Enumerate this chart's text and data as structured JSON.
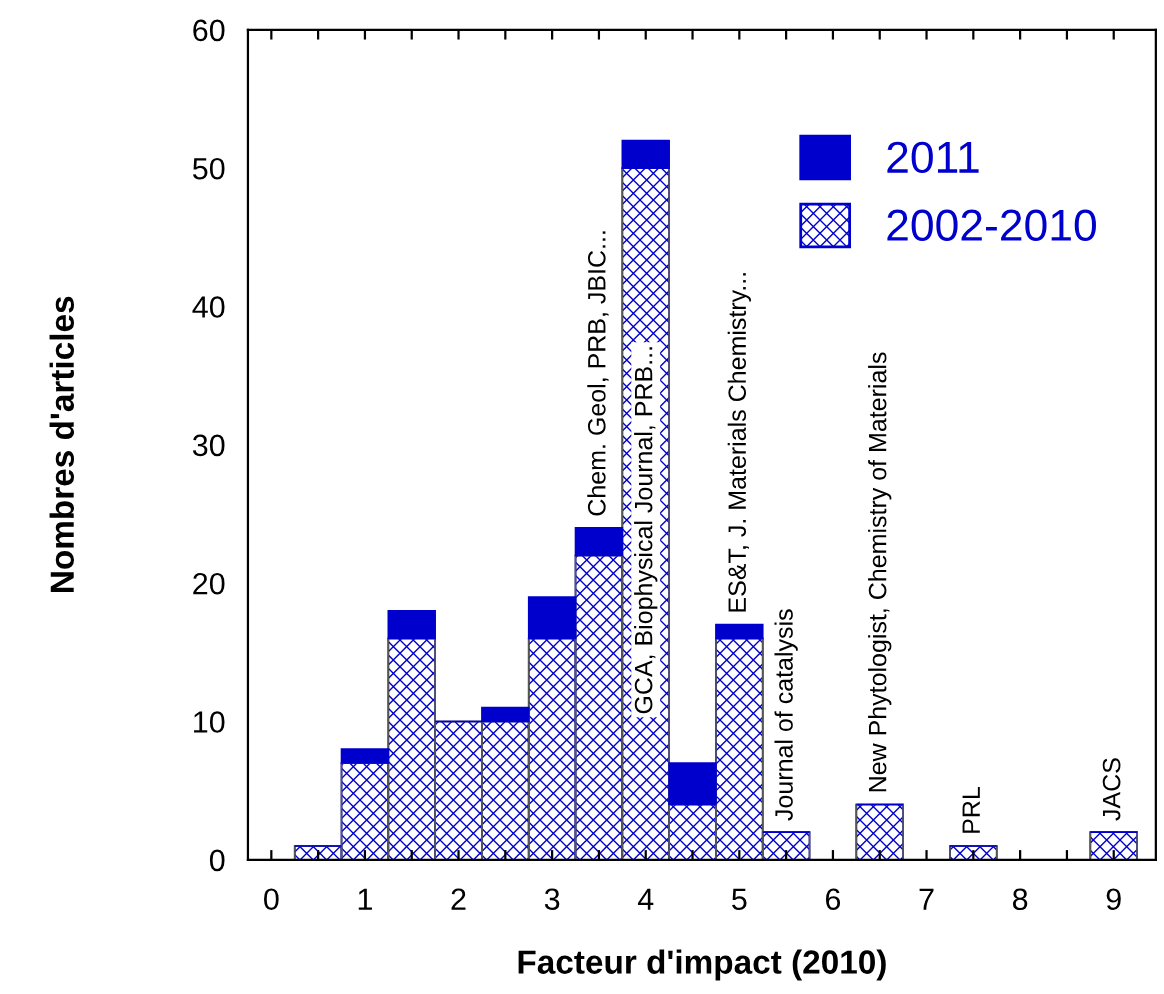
{
  "chart_data": {
    "type": "bar",
    "stacked": true,
    "xlabel": "Facteur d'impact (2010)",
    "ylabel": "Nombres d'articles",
    "x": [
      0.5,
      1.0,
      1.5,
      2.0,
      2.5,
      3.0,
      3.5,
      4.0,
      4.5,
      5.0,
      5.5,
      6.0,
      6.5,
      7.0,
      7.5,
      8.0,
      8.5,
      9.0
    ],
    "series": [
      {
        "name": "2002-2010",
        "color": "#0000cc",
        "values": [
          1,
          7,
          16,
          10,
          10,
          16,
          22,
          50,
          4,
          16,
          2,
          0,
          4,
          0,
          1,
          0,
          0,
          2
        ]
      },
      {
        "name": "2011",
        "color": "#0000cc",
        "values": [
          0,
          1,
          2,
          0,
          1,
          3,
          2,
          2,
          3,
          1,
          0,
          0,
          0,
          0,
          0,
          0,
          0,
          0
        ]
      }
    ],
    "xlim": [
      -0.25,
      9.45
    ],
    "ylim": [
      0,
      60
    ],
    "xticks": [
      0,
      {
        "value": 0.5,
        "label": null
      },
      1,
      {
        "value": 1.5,
        "label": null
      },
      2,
      {
        "value": 2.5,
        "label": null
      },
      3,
      {
        "value": 3.5,
        "label": null
      },
      4,
      {
        "value": 4.5,
        "label": null
      },
      5,
      {
        "value": 5.5,
        "label": null
      },
      6,
      {
        "value": 6.5,
        "label": null
      },
      7,
      {
        "value": 7.5,
        "label": null
      },
      8,
      {
        "value": 8.5,
        "label": null
      },
      9
    ],
    "yticks": [
      0,
      10,
      20,
      30,
      40,
      50,
      60
    ],
    "legend": "top right",
    "annotations": [
      {
        "text": "Chem. Geol, PRB, JBIC...",
        "x": 3.5,
        "y": 24
      },
      "GCA, Biophysical Journal, PRB...",
      {
        "text": "ES&T, J. Materials Chemistry...",
        "x": 5.0,
        "y": 17
      },
      {
        "text": "Journal of catalysis",
        "x": 5.5,
        "y": 2
      },
      {
        "text": "New Phytologist, Chemistry of Materials",
        "x": 6.5,
        "y": 4
      },
      {
        "text": "PRL",
        "x": 7.5,
        "y": 1
      },
      {
        "text": "JACS",
        "x": 9.0,
        "y": 2
      }
    ]
  }
}
